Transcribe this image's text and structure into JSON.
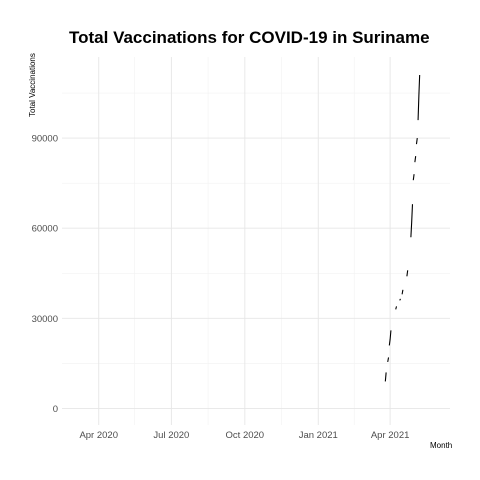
{
  "chart_data": {
    "type": "line",
    "title": "Total Vaccinations for COVID-19 in Suriname",
    "xlabel": "Month",
    "ylabel": "Total Vaccinations",
    "x_ticks": [
      {
        "date": "2020-04-01",
        "label": "Apr 2020"
      },
      {
        "date": "2020-07-01",
        "label": "Jul 2020"
      },
      {
        "date": "2020-10-01",
        "label": "Oct 2020"
      },
      {
        "date": "2021-01-01",
        "label": "Jan 2021"
      },
      {
        "date": "2021-04-01",
        "label": "Apr 2021"
      }
    ],
    "y_ticks": [
      0,
      30000,
      60000,
      90000
    ],
    "xlim": [
      "2020-02-15",
      "2021-06-15"
    ],
    "ylim": [
      -5500,
      117000
    ],
    "grid": true,
    "legend": "none",
    "series": [
      {
        "segments": [
          [
            [
              "2021-03-26",
              9000
            ],
            [
              "2021-03-27",
              12000
            ]
          ],
          [
            [
              "2021-03-29",
              15500
            ],
            [
              "2021-03-30",
              17000
            ]
          ],
          [
            [
              "2021-03-31",
              21000
            ],
            [
              "2021-04-01",
              23000
            ],
            [
              "2021-04-02",
              26000
            ]
          ],
          [
            [
              "2021-04-08",
              33000
            ],
            [
              "2021-04-09",
              34000
            ]
          ],
          [
            [
              "2021-04-13",
              36000
            ],
            [
              "2021-04-14",
              36500
            ]
          ],
          [
            [
              "2021-04-16",
              38000
            ],
            [
              "2021-04-17",
              39500
            ]
          ],
          [
            [
              "2021-04-22",
              44000
            ],
            [
              "2021-04-23",
              46000
            ]
          ],
          [
            [
              "2021-04-27",
              57000
            ],
            [
              "2021-04-28",
              62000
            ],
            [
              "2021-04-29",
              68000
            ]
          ],
          [
            [
              "2021-04-30",
              76000
            ],
            [
              "2021-05-01",
              78000
            ]
          ],
          [
            [
              "2021-05-02",
              82000
            ],
            [
              "2021-05-03",
              84000
            ]
          ],
          [
            [
              "2021-05-04",
              88000
            ],
            [
              "2021-05-05",
              90000
            ]
          ],
          [
            [
              "2021-05-06",
              96000
            ],
            [
              "2021-05-07",
              104000
            ],
            [
              "2021-05-08",
              111000
            ]
          ]
        ]
      }
    ]
  }
}
